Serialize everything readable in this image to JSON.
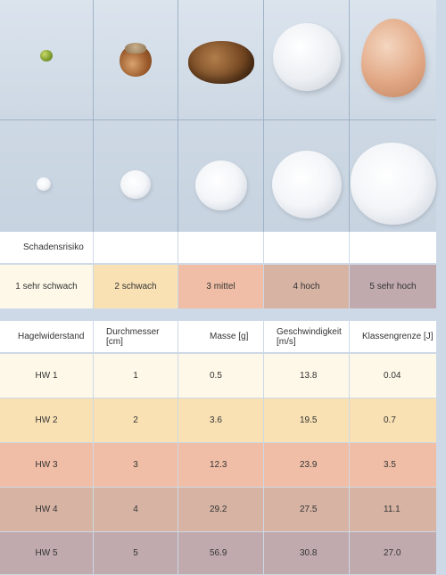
{
  "objects": {
    "top_row": [
      "pea-icon",
      "hazelnut-icon",
      "walnut-icon",
      "golf-ball-icon",
      "egg-icon"
    ],
    "bottom_row": [
      "hailstone-1-icon",
      "hailstone-2-icon",
      "hailstone-3-icon",
      "hailstone-4-icon",
      "hailstone-5-icon"
    ]
  },
  "risk": {
    "title": "Schadensrisiko",
    "levels": [
      "1 sehr schwach",
      "2 schwach",
      "3 mittel",
      "4 hoch",
      "5 sehr hoch"
    ],
    "colors": [
      "#fdf8e8",
      "#f9e1b4",
      "#f0bea6",
      "#d6b3a3",
      "#c0aaae"
    ]
  },
  "table": {
    "headers": [
      "Hagelwiderstand",
      "Durchmesser [cm]",
      "Masse [g]",
      "Geschwindigkeit [m/s]",
      "Klassengrenze [J]"
    ],
    "rows": [
      [
        "HW 1",
        "1",
        "0.5",
        "13.8",
        "0.04"
      ],
      [
        "HW 2",
        "2",
        "3.6",
        "19.5",
        "0.7"
      ],
      [
        "HW 3",
        "3",
        "12.3",
        "23.9",
        "3.5"
      ],
      [
        "HW 4",
        "4",
        "29.2",
        "27.5",
        "11.1"
      ],
      [
        "HW 5",
        "5",
        "56.9",
        "30.8",
        "27.0"
      ]
    ]
  }
}
